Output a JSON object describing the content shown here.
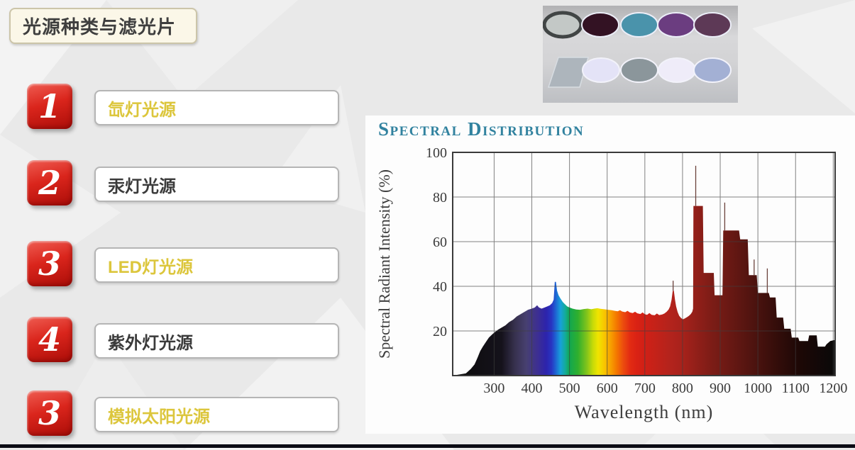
{
  "slide": {
    "title": "光源种类与滤光片",
    "items": [
      {
        "number": "1",
        "label": "氙灯光源",
        "highlight": true
      },
      {
        "number": "2",
        "label": "汞灯光源",
        "highlight": false
      },
      {
        "number": "3",
        "label": "LED灯光源",
        "highlight": true
      },
      {
        "number": "4",
        "label": "紫外灯光源",
        "highlight": false
      },
      {
        "number": "3",
        "label": "模拟太阳光源",
        "highlight": true
      }
    ],
    "colors": {
      "accent_red": "#d0241b",
      "highlight_gold": "#dcc63c",
      "body_text": "#3b3b3b",
      "title_box_cream": "#fbf7e8",
      "chart_title_teal": "#31829f"
    }
  },
  "filters_photo": {
    "row1": [
      {
        "name": "silver-lens-with-dark-ring",
        "fill": "#c3c8c6",
        "ring": "#414545"
      },
      {
        "name": "dark-maroon-filter",
        "fill": "#331223"
      },
      {
        "name": "teal-filter",
        "fill": "#4a93ab"
      },
      {
        "name": "purple-filter",
        "fill": "#6b3d80"
      },
      {
        "name": "plum-filter",
        "fill": "#5d3956"
      }
    ],
    "row2": [
      {
        "name": "glass-plate",
        "fill": "#adb5bc",
        "shape": "plate"
      },
      {
        "name": "pale-lavender-filter",
        "fill": "#e4e3f7"
      },
      {
        "name": "gray-filter",
        "fill": "#8b969b"
      },
      {
        "name": "white-filter",
        "fill": "#efecf9"
      },
      {
        "name": "periwinkle-filter",
        "fill": "#a3b0d4"
      }
    ]
  },
  "chart_data": {
    "type": "area",
    "title": "Spectral Distribution",
    "xlabel": "Wavelength (nm)",
    "ylabel": "Spectral Radiant Intensity (%)",
    "xlim": [
      190,
      1205
    ],
    "ylim": [
      0,
      100
    ],
    "x_ticks": [
      300,
      400,
      500,
      600,
      700,
      800,
      900,
      1000,
      1100,
      1200
    ],
    "y_ticks": [
      20,
      40,
      60,
      80,
      100
    ],
    "grid": true,
    "points": [
      [
        190,
        0
      ],
      [
        225,
        1
      ],
      [
        238,
        3
      ],
      [
        248,
        5
      ],
      [
        256,
        8
      ],
      [
        263,
        11
      ],
      [
        270,
        13
      ],
      [
        278,
        15
      ],
      [
        286,
        17
      ],
      [
        295,
        18.5
      ],
      [
        302,
        19.5
      ],
      [
        310,
        20.5
      ],
      [
        320,
        21.5
      ],
      [
        330,
        22.5
      ],
      [
        340,
        24
      ],
      [
        350,
        25
      ],
      [
        360,
        26.5
      ],
      [
        370,
        27.5
      ],
      [
        380,
        28.5
      ],
      [
        390,
        29.5
      ],
      [
        400,
        30
      ],
      [
        408,
        30.5
      ],
      [
        414,
        31.5
      ],
      [
        419,
        30.5
      ],
      [
        426,
        30
      ],
      [
        434,
        30.5
      ],
      [
        441,
        31
      ],
      [
        448,
        31.5
      ],
      [
        454,
        32.5
      ],
      [
        458,
        34
      ],
      [
        461,
        42
      ],
      [
        464,
        42
      ],
      [
        467,
        38
      ],
      [
        471,
        36
      ],
      [
        476,
        34.5
      ],
      [
        482,
        33
      ],
      [
        488,
        32
      ],
      [
        494,
        31
      ],
      [
        500,
        30.5
      ],
      [
        508,
        30
      ],
      [
        518,
        29.6
      ],
      [
        528,
        29.5
      ],
      [
        538,
        29.8
      ],
      [
        548,
        30
      ],
      [
        558,
        29.7
      ],
      [
        566,
        30
      ],
      [
        574,
        30.2
      ],
      [
        582,
        29.9
      ],
      [
        592,
        29.7
      ],
      [
        602,
        29.5
      ],
      [
        612,
        29.3
      ],
      [
        620,
        29
      ],
      [
        628,
        28.8
      ],
      [
        634,
        29.3
      ],
      [
        640,
        28.7
      ],
      [
        648,
        28.4
      ],
      [
        654,
        29
      ],
      [
        660,
        28.3
      ],
      [
        668,
        28
      ],
      [
        674,
        28.6
      ],
      [
        680,
        27.9
      ],
      [
        688,
        27.6
      ],
      [
        694,
        28.3
      ],
      [
        700,
        27.5
      ],
      [
        706,
        27.2
      ],
      [
        712,
        28
      ],
      [
        718,
        27.2
      ],
      [
        726,
        27
      ],
      [
        732,
        27.8
      ],
      [
        738,
        27.1
      ],
      [
        746,
        27.4
      ],
      [
        752,
        27.8
      ],
      [
        758,
        28.6
      ],
      [
        763,
        29.6
      ],
      [
        767,
        31
      ],
      [
        771,
        34
      ],
      [
        774,
        38
      ],
      [
        777,
        38
      ],
      [
        780,
        34
      ],
      [
        783,
        31
      ],
      [
        787,
        28.5
      ],
      [
        791,
        26.8
      ],
      [
        796,
        25.8
      ],
      [
        801,
        25.2
      ],
      [
        806,
        25.6
      ],
      [
        812,
        26.2
      ],
      [
        817,
        26.8
      ],
      [
        822,
        27.6
      ],
      [
        826,
        28.6
      ],
      [
        828,
        30
      ],
      [
        829,
        76
      ],
      [
        854,
        76
      ],
      [
        856,
        46
      ],
      [
        883,
        46
      ],
      [
        885,
        36
      ],
      [
        906,
        36
      ],
      [
        908,
        65
      ],
      [
        950,
        65
      ],
      [
        953,
        61
      ],
      [
        973,
        61
      ],
      [
        976,
        45
      ],
      [
        997,
        45
      ],
      [
        1000,
        37
      ],
      [
        1029,
        37
      ],
      [
        1032,
        35
      ],
      [
        1047,
        35
      ],
      [
        1050,
        26
      ],
      [
        1067,
        26
      ],
      [
        1070,
        21
      ],
      [
        1087,
        21
      ],
      [
        1090,
        17
      ],
      [
        1107,
        17
      ],
      [
        1110,
        15.5
      ],
      [
        1133,
        15.5
      ],
      [
        1136,
        18
      ],
      [
        1156,
        18
      ],
      [
        1159,
        13
      ],
      [
        1178,
        13
      ],
      [
        1182,
        14
      ],
      [
        1192,
        15.5
      ],
      [
        1205,
        16
      ]
    ],
    "thin_spikes": [
      {
        "x": 775,
        "from": 38,
        "to": 42.5
      },
      {
        "x": 835,
        "from": 76,
        "to": 94
      },
      {
        "x": 912,
        "from": 65,
        "to": 77.5
      },
      {
        "x": 990,
        "from": 45,
        "to": 52
      },
      {
        "x": 1025,
        "from": 37,
        "to": 48
      }
    ],
    "spectrum_gradient": [
      [
        190,
        "#0b0b0b"
      ],
      [
        320,
        "#15121b"
      ],
      [
        355,
        "#37314e"
      ],
      [
        385,
        "#474070"
      ],
      [
        415,
        "#3d2f92"
      ],
      [
        438,
        "#2d23ac"
      ],
      [
        452,
        "#2834c2"
      ],
      [
        463,
        "#1e62d2"
      ],
      [
        476,
        "#18a0da"
      ],
      [
        488,
        "#14ab9e"
      ],
      [
        500,
        "#12a751"
      ],
      [
        522,
        "#2faf2e"
      ],
      [
        545,
        "#7fc31c"
      ],
      [
        562,
        "#c6da08"
      ],
      [
        576,
        "#f0e400"
      ],
      [
        592,
        "#f8c700"
      ],
      [
        610,
        "#f79e00"
      ],
      [
        626,
        "#f47500"
      ],
      [
        642,
        "#ec4d0e"
      ],
      [
        660,
        "#e32c12"
      ],
      [
        678,
        "#da2214"
      ],
      [
        700,
        "#d02016"
      ],
      [
        728,
        "#c42219"
      ],
      [
        765,
        "#b4231c"
      ],
      [
        800,
        "#a7221b"
      ],
      [
        838,
        "#911f19"
      ],
      [
        880,
        "#7b1c16"
      ],
      [
        930,
        "#671813"
      ],
      [
        990,
        "#4d130f"
      ],
      [
        1050,
        "#340d0a"
      ],
      [
        1110,
        "#1d0806"
      ],
      [
        1205,
        "#090909"
      ]
    ]
  }
}
